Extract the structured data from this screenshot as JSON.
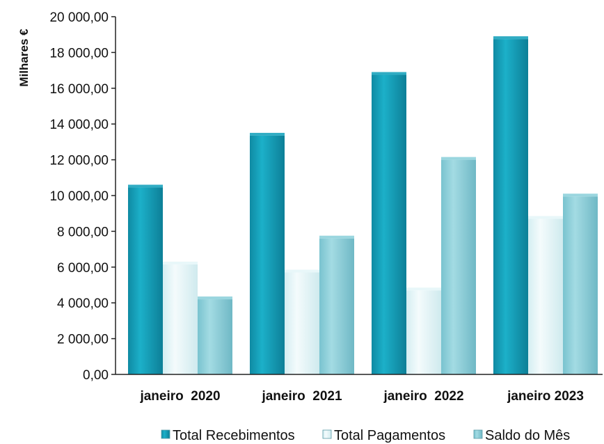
{
  "chart_data": {
    "type": "bar",
    "ylabel": "Milhares €",
    "ylim": [
      0,
      20000
    ],
    "ytick_step": 2000,
    "ytick_labels": [
      "0,00",
      "2 000,00",
      "4 000,00",
      "6 000,00",
      "8 000,00",
      "10 000,00",
      "12 000,00",
      "14 000,00",
      "16 000,00",
      "18 000,00",
      "20 000,00"
    ],
    "categories": [
      "janeiro  2020",
      "janeiro  2021",
      "janeiro  2022",
      "janeiro 2023"
    ],
    "series": [
      {
        "name": "Total Recebimentos",
        "values": [
          10450,
          13350,
          16750,
          18750
        ],
        "color": "#1aa3bd"
      },
      {
        "name": "Total Pagamentos",
        "values": [
          6150,
          5700,
          4700,
          8700
        ],
        "color": "#e6f6f8"
      },
      {
        "name": "Saldo do Mês",
        "values": [
          4200,
          7600,
          12000,
          9950
        ],
        "color": "#8fd2dc"
      }
    ],
    "legend_position": "bottom",
    "grid": false
  }
}
